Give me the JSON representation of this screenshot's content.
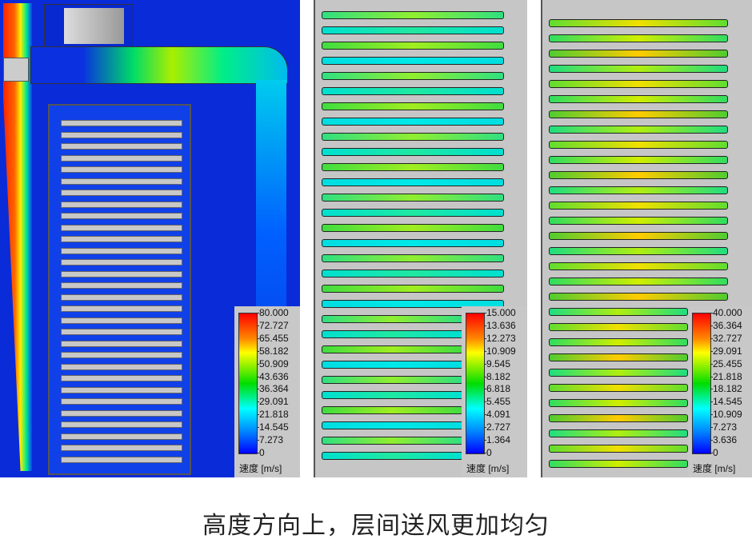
{
  "panels": [
    {
      "legend": {
        "ticks": [
          "80.000",
          "72.727",
          "65.455",
          "58.182",
          "50.909",
          "43.636",
          "36.364",
          "29.091",
          "21.818",
          "14.545",
          "7.273",
          "0"
        ],
        "unit": "速度 [m/s]",
        "max": 80
      }
    },
    {
      "legend": {
        "ticks": [
          "15.000",
          "13.636",
          "12.273",
          "10.909",
          "9.545",
          "8.182",
          "6.818",
          "5.455",
          "4.091",
          "2.727",
          "1.364",
          "0"
        ],
        "unit": "速度 [m/s]",
        "max": 15
      }
    },
    {
      "legend": {
        "ticks": [
          "40.000",
          "36.364",
          "32.727",
          "29.091",
          "25.455",
          "21.818",
          "18.182",
          "14.545",
          "10.909",
          "7.273",
          "3.636",
          "0"
        ],
        "unit": "速度 [m/s]",
        "max": 40
      }
    }
  ],
  "caption": "高度方向上，层间送风更加均匀",
  "colors": {
    "low": "#0000ff",
    "mid": "#00dd00",
    "high": "#ff0000",
    "background_gray": "#c6c6c6"
  }
}
